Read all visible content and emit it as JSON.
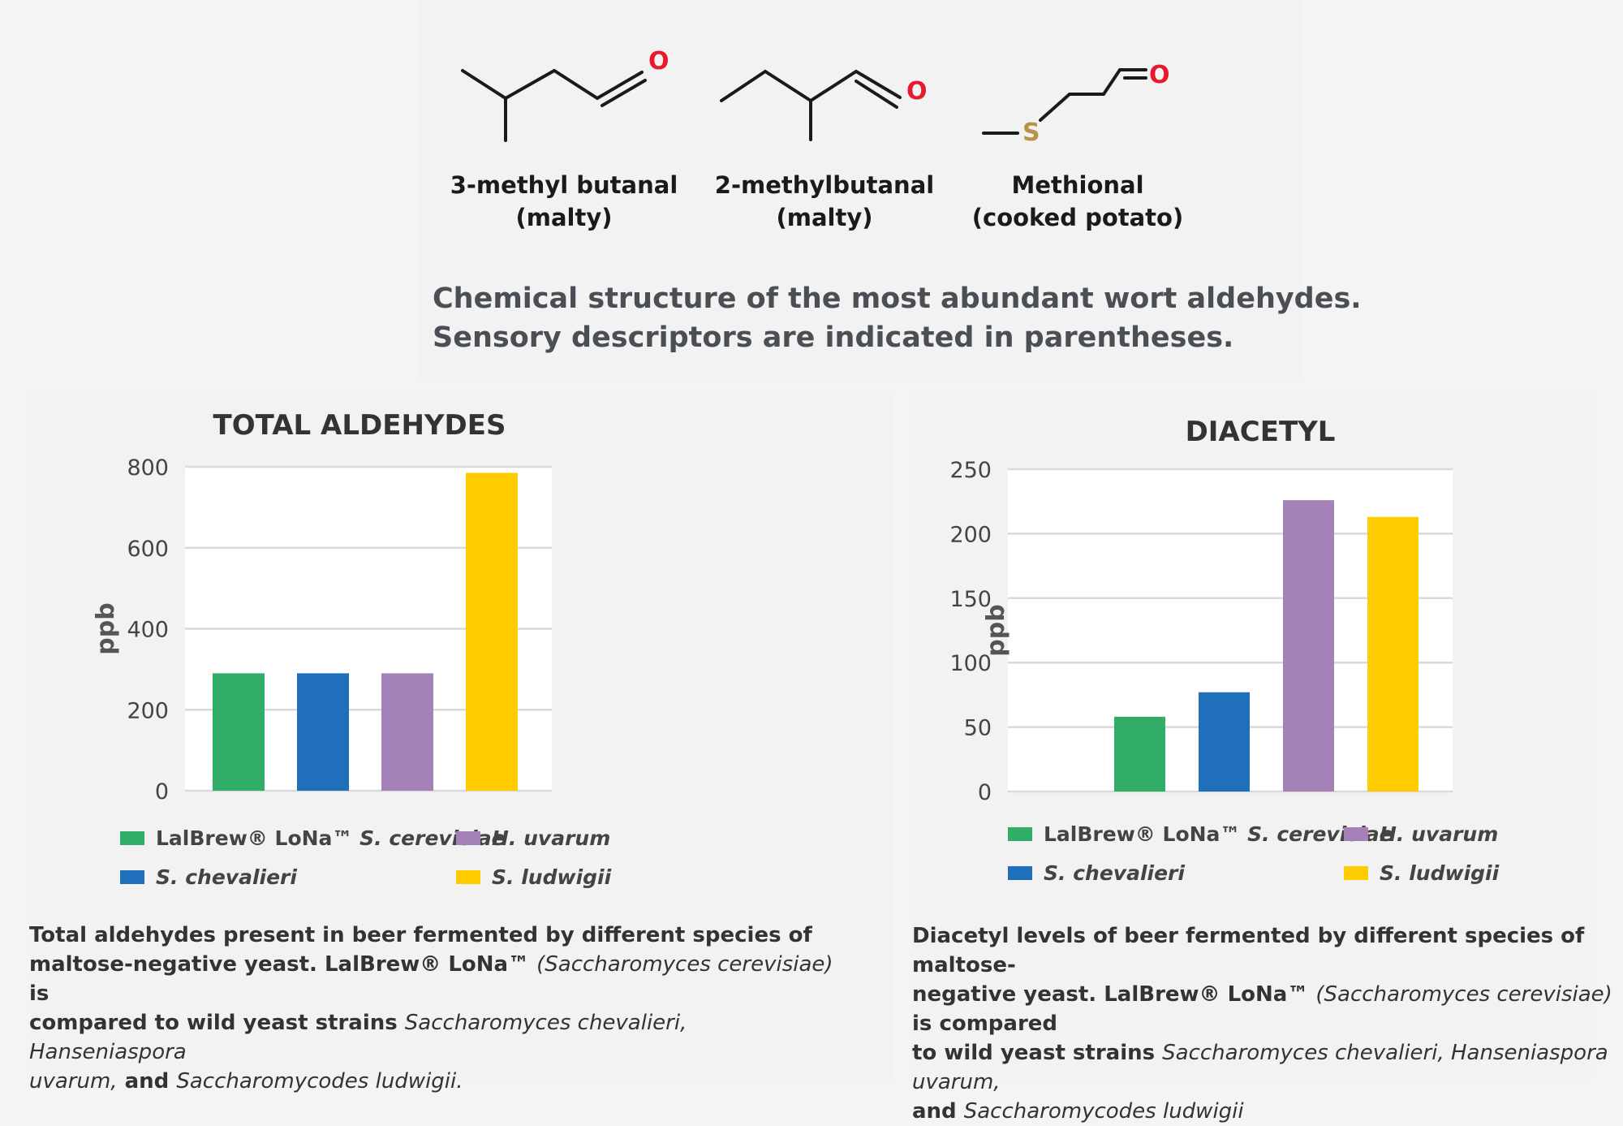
{
  "molecules": [
    {
      "name": "3-methyl butanal",
      "descriptor": "(malty)",
      "oxygen": "O"
    },
    {
      "name": "2-methylbutanal",
      "descriptor": "(malty)",
      "oxygen": "O"
    },
    {
      "name": "Methional",
      "descriptor": "(cooked potato)",
      "oxygen": "O",
      "sulfur": "S"
    }
  ],
  "colors": {
    "oxygen": "#e8192c",
    "sulfur": "#b8914a",
    "bond": "#1a1a1a"
  },
  "caption_top": {
    "line1": "Chemical structure of the most abundant wort aldehydes.",
    "line2": "Sensory descriptors are indicated in parentheses."
  },
  "chart_data": [
    {
      "type": "bar",
      "title": "TOTAL ALDEHYDES",
      "ylabel": "ppb",
      "ylim": [
        0,
        800
      ],
      "yticks": [
        0,
        200,
        400,
        600,
        800
      ],
      "categories": [
        "LalBrew® LoNa™ S. cerevisiae",
        "S. chevalieri",
        "H. uvarum",
        "S. ludwigii"
      ],
      "values": [
        290,
        290,
        290,
        785
      ],
      "colors": [
        "#31ad68",
        "#1f6fbb",
        "#a482b7",
        "#ffcc00"
      ],
      "grid": true
    },
    {
      "type": "bar",
      "title": "DIACETYL",
      "ylabel": "ppb",
      "ylim": [
        0,
        250
      ],
      "yticks": [
        0,
        50,
        100,
        150,
        200,
        250
      ],
      "categories": [
        "LalBrew® LoNa™ S. cerevisiae",
        "S. chevalieri",
        "H. uvarum",
        "S. ludwigii"
      ],
      "values": [
        58,
        77,
        226,
        213
      ],
      "colors": [
        "#31ad68",
        "#1f6fbb",
        "#a482b7",
        "#ffcc00"
      ],
      "grid": true
    }
  ],
  "legend": {
    "lalbrew_prefix": "LalBrew® LoNa™",
    "lalbrew_species": "S. cerevisiae",
    "chevalieri": "S. chevalieri",
    "uvarum": "H. uvarum",
    "ludwigii": "S. ludwigii"
  },
  "desc_left": {
    "l1": "Total aldehydes present in beer fermented by different species of",
    "l2a": "maltose-negative yeast. LalBrew® LoNa™ ",
    "l2b": "(Saccharomyces cerevisiae)",
    "l2c": " is",
    "l3a": "compared to wild yeast strains ",
    "l3b": "Saccharomyces chevalieri, Hanseniaspora",
    "l4a": "uvarum,",
    "l4b": " and ",
    "l4c": "Saccharomycodes ludwigii."
  },
  "desc_right": {
    "l1": "Diacetyl levels of beer fermented by different species of maltose-",
    "l2a": "negative yeast. LalBrew® LoNa™ ",
    "l2b": "(Saccharomyces cerevisiae)",
    "l2c": " is compared",
    "l3a": "to wild yeast strains ",
    "l3b": "Saccharomyces chevalieri, Hanseniaspora uvarum,",
    "l4a": "and ",
    "l4b": "Saccharomycodes ludwigii"
  }
}
